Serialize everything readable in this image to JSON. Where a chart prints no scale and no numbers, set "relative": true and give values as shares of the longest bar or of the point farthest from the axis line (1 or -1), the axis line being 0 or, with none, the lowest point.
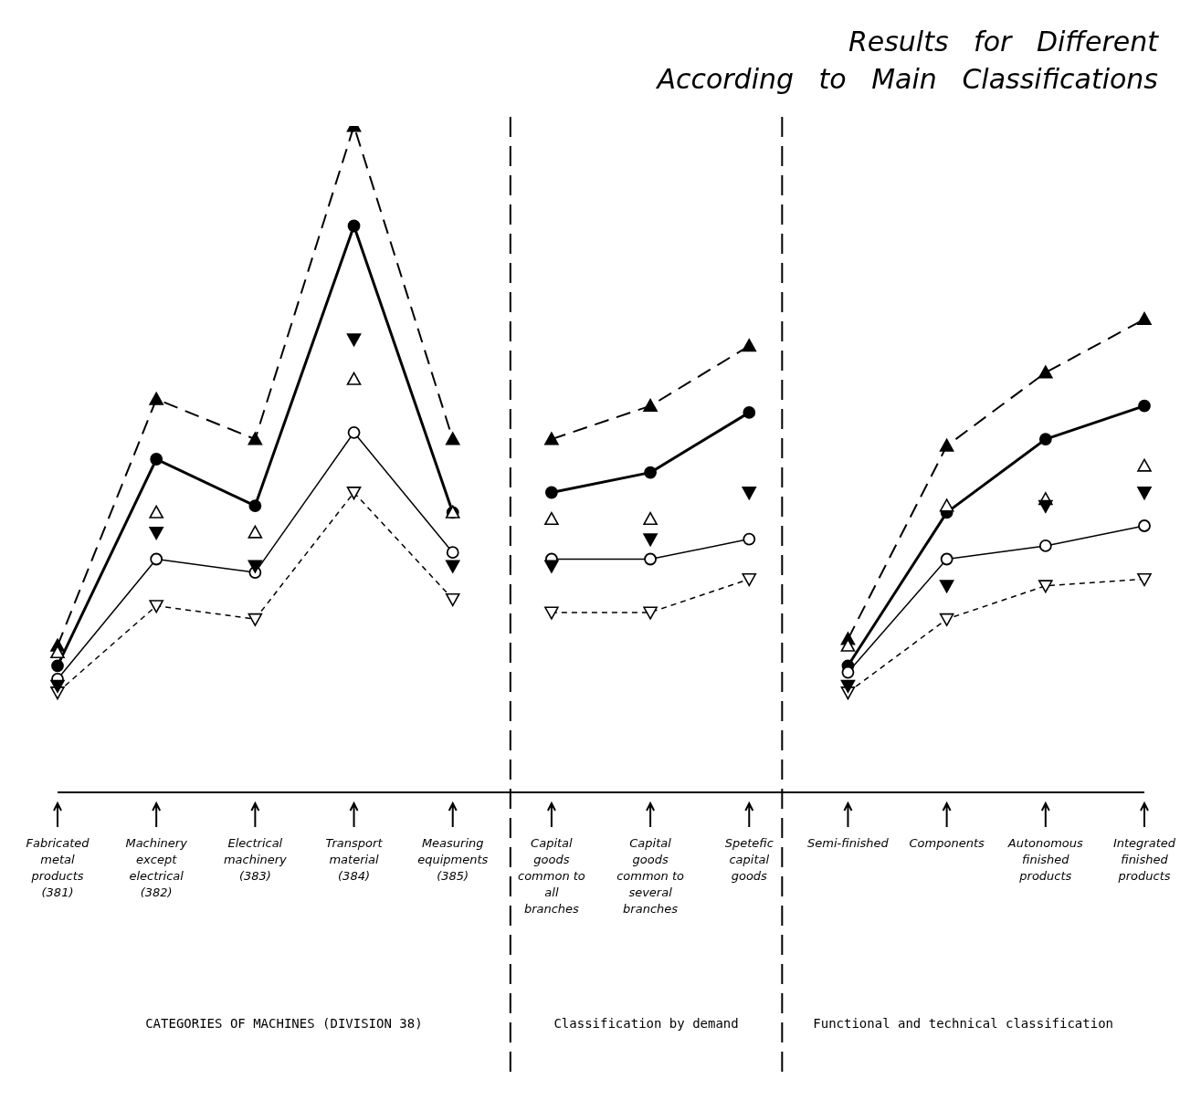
{
  "chart_data": {
    "type": "line",
    "title": "Results for Different",
    "subtitle": "According to Main Classifications",
    "relative": true,
    "categories": [
      "Fabricated metal products (381)",
      "Machinery except electrical (382)",
      "Electrical machinery (383)",
      "Transport material (384)",
      "Measuring equipments (385)",
      "Capital goods common to all branches",
      "Capital goods common to several branches",
      "Spetefic capital goods",
      "Semi-finished",
      "Components",
      "Autonomous finished products",
      "Integrated finished products"
    ],
    "annotations": [
      "CATEGORIES OF MACHINES (DIVISION 38)",
      "Classification by demand",
      "Functional and technical classification"
    ],
    "series": [
      {
        "color": "#000000",
        "marker": "triangle",
        "line_style": "dashed",
        "values": [
          0.22,
          0.59,
          0.53,
          1.0,
          0.53,
          null,
          null,
          null,
          null,
          null,
          null,
          null
        ]
      },
      {
        "type": "line",
        "color": "#000000",
        "marker": "triangle",
        "line_style": "dashed",
        "values": [
          null,
          null,
          null,
          null,
          null,
          0.53,
          0.58,
          0.67,
          null,
          null,
          null,
          null
        ]
      },
      {
        "type": "line",
        "color": "#000000",
        "marker": "triangle",
        "line_style": "dashed",
        "values": [
          null,
          null,
          null,
          null,
          null,
          null,
          null,
          null,
          0.23,
          0.52,
          0.63,
          0.71
        ]
      },
      {
        "type": "line",
        "color": "#000000",
        "marker": "circle",
        "line_style": "solid",
        "values": [
          0.19,
          0.5,
          0.43,
          0.85,
          0.42,
          null,
          null,
          null,
          null,
          null,
          null,
          null
        ]
      },
      {
        "type": "line",
        "color": "#000000",
        "marker": "circle",
        "line_style": "solid",
        "values": [
          null,
          null,
          null,
          null,
          null,
          0.45,
          0.48,
          0.57,
          null,
          null,
          null,
          null
        ]
      },
      {
        "type": "line",
        "color": "#000000",
        "marker": "circle",
        "line_style": "solid",
        "values": [
          null,
          null,
          null,
          null,
          null,
          null,
          null,
          null,
          0.19,
          0.42,
          0.53,
          0.58
        ]
      },
      {
        "type": "line",
        "color": "#000000",
        "marker": "circle",
        "line_style": "solid",
        "values": [
          0.17,
          0.35,
          0.33,
          0.54,
          0.36,
          null,
          null,
          null,
          null,
          null,
          null,
          null
        ]
      },
      {
        "type": "line",
        "color": "#000000",
        "marker": "circle",
        "line_style": "solid",
        "values": [
          null,
          null,
          null,
          null,
          null,
          0.35,
          0.35,
          0.38,
          null,
          null,
          null,
          null
        ]
      },
      {
        "type": "line",
        "color": "#000000",
        "marker": "circle",
        "line_style": "solid",
        "values": [
          null,
          null,
          null,
          null,
          null,
          null,
          null,
          null,
          0.18,
          0.35,
          0.37,
          0.4
        ]
      },
      {
        "type": "line",
        "color": "#000000",
        "marker": "triangle",
        "line_style": "dashed",
        "values": [
          0.15,
          0.28,
          0.26,
          0.45,
          0.29,
          null,
          null,
          null,
          null,
          null,
          null,
          null
        ]
      },
      {
        "type": "line",
        "color": "#000000",
        "marker": "triangle",
        "line_style": "dashed",
        "values": [
          null,
          null,
          null,
          null,
          null,
          0.27,
          0.27,
          0.32,
          null,
          null,
          null,
          null
        ]
      },
      {
        "type": "line",
        "color": "#000000",
        "marker": "triangle",
        "line_style": "dashed",
        "values": [
          null,
          null,
          null,
          null,
          null,
          null,
          null,
          null,
          0.15,
          0.26,
          0.31,
          0.32
        ]
      },
      {
        "type": "scatter",
        "color": "#000000",
        "marker": "triangle",
        "values": [
          0.21,
          0.42,
          0.39,
          0.62,
          0.42,
          0.41,
          0.41,
          null,
          0.22,
          0.43,
          0.44,
          0.49
        ]
      },
      {
        "type": "scatter",
        "color": "#000000",
        "marker": "triangle",
        "values": [
          0.16,
          0.39,
          0.34,
          0.68,
          0.34,
          0.34,
          0.38,
          0.45,
          0.16,
          0.31,
          0.43,
          0.45
        ]
      }
    ]
  }
}
